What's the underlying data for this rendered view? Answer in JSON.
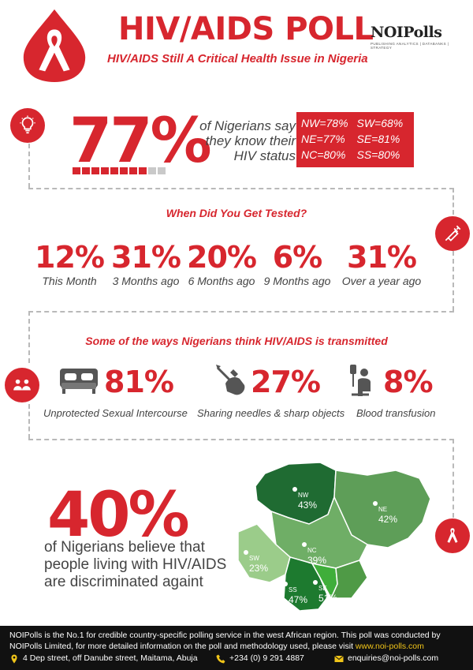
{
  "header": {
    "title": "HIV/AIDS POLL",
    "subtitle": "HIV/AIDS Still A Critical Health Issue in Nigeria",
    "logo_text": "NOIPolls",
    "logo_tagline": "PUBLISHING ANALYTICS | DATABANKS | STRATEGY"
  },
  "status": {
    "value": "77%",
    "fill_fraction": 0.77,
    "label": "of Nigerians say they know their HIV status",
    "label_lines": [
      "of Nigerians say",
      "they know their",
      "HIV status"
    ],
    "regions": [
      "NW=78%",
      "SW=68%",
      "NE=77%",
      "SE=81%",
      "NC=80%",
      "SS=80%"
    ]
  },
  "tested": {
    "title": "When Did You Get Tested?",
    "items": [
      {
        "value": "12%",
        "label": "This Month"
      },
      {
        "value": "31%",
        "label": "3 Months ago"
      },
      {
        "value": "20%",
        "label": "6 Months ago"
      },
      {
        "value": "6%",
        "label": "9 Months ago"
      },
      {
        "value": "31%",
        "label": "Over a year ago"
      }
    ]
  },
  "transmission": {
    "title": "Some of the ways Nigerians think HIV/AIDS is transmitted",
    "items": [
      {
        "value": "81%",
        "label": "Unprotected Sexual Intercourse",
        "icon": "bed-icon"
      },
      {
        "value": "27%",
        "label": "Sharing needles & sharp objects",
        "icon": "needle-hand-icon"
      },
      {
        "value": "8%",
        "label": "Blood transfusion",
        "icon": "blood-transfusion-icon"
      }
    ]
  },
  "discrimination": {
    "value": "40%",
    "lines": [
      "of Nigerians believe that",
      "people living with HIV/AIDS",
      "are discriminated againt"
    ]
  },
  "map": {
    "regions": [
      {
        "code": "NW",
        "value": "43%",
        "color": "#1f6b32"
      },
      {
        "code": "NE",
        "value": "42%",
        "color": "#5e9e58"
      },
      {
        "code": "NC",
        "value": "39%",
        "color": "#6fae66"
      },
      {
        "code": "SW",
        "value": "23%",
        "color": "#9bcc8a"
      },
      {
        "code": "SS",
        "value": "47%",
        "color": "#1d7a2f"
      },
      {
        "code": "SE",
        "value": "51%",
        "color": "#3fae3a"
      }
    ]
  },
  "footer": {
    "text": "NOIPolls is the No.1 for credible country-specific polling service in the west African region. This poll was conducted by NOIPolls Limited, for more detailed information on the poll and methodology used, please visit",
    "link": "www.noi-polls.com",
    "address": "4 Dep street, off Danube street, Maitama, Abuja",
    "phone": "+234 (0) 9 291 4887",
    "email": "enquiries@noi-polls.com"
  },
  "colors": {
    "accent": "#d7262e",
    "text": "#444444",
    "footer_bg": "#111111",
    "connector": "#b9b9b9"
  }
}
